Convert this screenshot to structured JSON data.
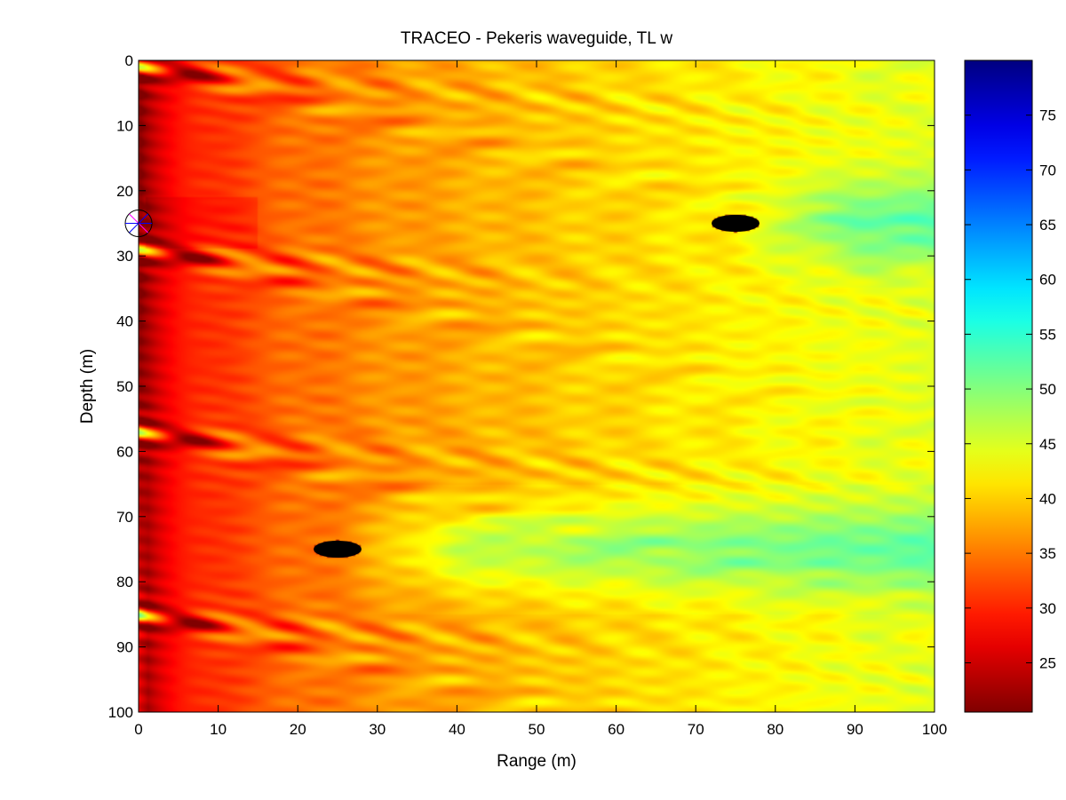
{
  "chart_data": {
    "type": "heatmap",
    "title": "TRACEO - Pekeris waveguide, TL w",
    "xlabel": "Range (m)",
    "ylabel": "Depth (m)",
    "xlim": [
      0,
      100
    ],
    "ylim": [
      100,
      0
    ],
    "y_axis_inverted": true,
    "x_ticks": [
      0,
      10,
      20,
      30,
      40,
      50,
      60,
      70,
      80,
      90,
      100
    ],
    "y_ticks": [
      0,
      10,
      20,
      30,
      40,
      50,
      60,
      70,
      80,
      90,
      100
    ],
    "colorbar": {
      "colormap": "jet",
      "reversed": true,
      "range": [
        20.5,
        80
      ],
      "ticks": [
        25,
        30,
        35,
        40,
        45,
        50,
        55,
        60,
        65,
        70,
        75
      ]
    },
    "source": {
      "range": 0,
      "depth": 25,
      "symbol": "circle-with-star"
    },
    "objects": [
      {
        "shape": "ellipse",
        "range": 25,
        "depth": 75,
        "width": 6,
        "height": 2.6,
        "color": "#000000"
      },
      {
        "shape": "ellipse",
        "range": 75,
        "depth": 25,
        "width": 6,
        "height": 2.6,
        "color": "#000000"
      }
    ],
    "grid": false,
    "legend": "colorbar-right"
  }
}
